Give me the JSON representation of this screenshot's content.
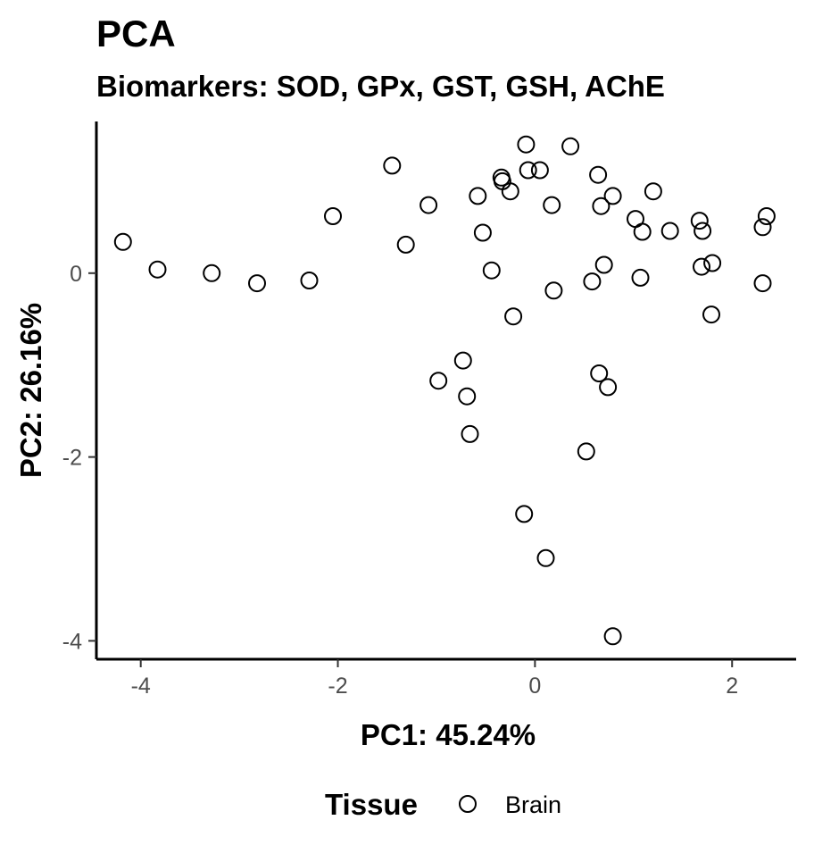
{
  "chart_data": {
    "type": "scatter",
    "title": "PCA",
    "subtitle": "Biomarkers: SOD, GPx, GST, GSH, AChE",
    "xlabel": "PC1: 45.24%",
    "ylabel": "PC2: 26.16%",
    "xlim": [
      -4.45,
      2.65
    ],
    "ylim": [
      -4.2,
      1.65
    ],
    "xticks": [
      -4,
      -2,
      0,
      2
    ],
    "yticks": [
      -4,
      -2,
      0
    ],
    "grid": false,
    "legend": {
      "title": "Tissue",
      "placement": "bottom",
      "entries": [
        "Brain"
      ]
    },
    "series": [
      {
        "name": "Brain",
        "marker": "open-circle",
        "color": "#000000",
        "points": [
          [
            -4.18,
            0.34
          ],
          [
            -3.83,
            0.04
          ],
          [
            -3.28,
            0.0
          ],
          [
            -2.82,
            -0.11
          ],
          [
            -2.29,
            -0.08
          ],
          [
            -2.05,
            0.62
          ],
          [
            -1.45,
            1.17
          ],
          [
            -1.31,
            0.31
          ],
          [
            -1.08,
            0.74
          ],
          [
            -0.98,
            -1.17
          ],
          [
            -0.73,
            -0.95
          ],
          [
            -0.69,
            -1.34
          ],
          [
            -0.66,
            -1.75
          ],
          [
            -0.58,
            0.84
          ],
          [
            -0.53,
            0.44
          ],
          [
            -0.44,
            0.03
          ],
          [
            -0.34,
            1.04
          ],
          [
            -0.33,
            1.0
          ],
          [
            -0.25,
            0.89
          ],
          [
            -0.22,
            -0.47
          ],
          [
            -0.11,
            -2.62
          ],
          [
            -0.09,
            1.4
          ],
          [
            -0.07,
            1.12
          ],
          [
            0.05,
            1.12
          ],
          [
            0.11,
            -3.1
          ],
          [
            0.17,
            0.74
          ],
          [
            0.19,
            -0.19
          ],
          [
            0.36,
            1.38
          ],
          [
            0.52,
            -1.94
          ],
          [
            0.58,
            -0.09
          ],
          [
            0.64,
            1.07
          ],
          [
            0.65,
            -1.09
          ],
          [
            0.67,
            0.73
          ],
          [
            0.7,
            0.09
          ],
          [
            0.74,
            -1.24
          ],
          [
            0.79,
            0.84
          ],
          [
            0.79,
            -3.95
          ],
          [
            1.02,
            0.59
          ],
          [
            1.07,
            -0.05
          ],
          [
            1.09,
            0.45
          ],
          [
            1.2,
            0.89
          ],
          [
            1.37,
            0.46
          ],
          [
            1.67,
            0.57
          ],
          [
            1.69,
            0.07
          ],
          [
            1.7,
            0.46
          ],
          [
            1.8,
            0.11
          ],
          [
            1.79,
            -0.45
          ],
          [
            2.31,
            -0.11
          ],
          [
            2.31,
            0.5
          ],
          [
            2.35,
            0.62
          ]
        ]
      }
    ]
  }
}
